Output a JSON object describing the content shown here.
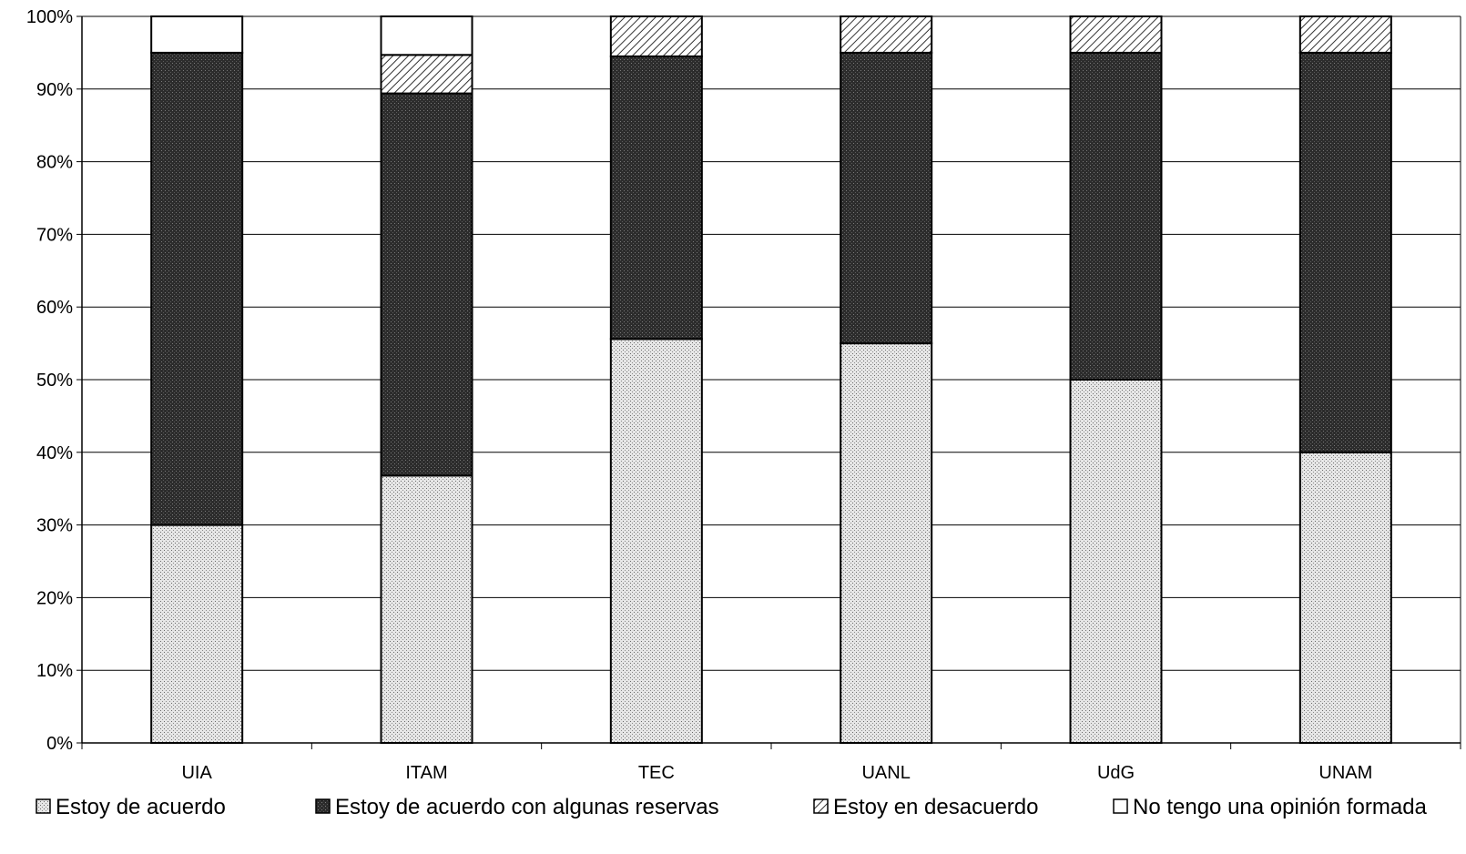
{
  "chart_data": {
    "type": "bar",
    "stacked": true,
    "percent": true,
    "categories": [
      "UIA",
      "ITAM",
      "TEC",
      "UANL",
      "UdG",
      "UNAM"
    ],
    "series": [
      {
        "name": "Estoy de acuerdo",
        "values": [
          30,
          36.8,
          55.6,
          55,
          50,
          40
        ]
      },
      {
        "name": "Estoy de acuerdo con algunas reservas",
        "values": [
          65,
          52.6,
          38.9,
          40,
          45,
          55
        ]
      },
      {
        "name": "Estoy en desacuerdo",
        "values": [
          0,
          5.3,
          5.5,
          5,
          5,
          5
        ]
      },
      {
        "name": "No tengo una opinión formada",
        "values": [
          5,
          5.3,
          0,
          0,
          0,
          0
        ]
      }
    ],
    "yticks": [
      "0%",
      "10%",
      "20%",
      "30%",
      "40%",
      "50%",
      "60%",
      "70%",
      "80%",
      "90%",
      "100%"
    ],
    "ylim": [
      0,
      100
    ],
    "grid": true,
    "legend": "bottom"
  }
}
